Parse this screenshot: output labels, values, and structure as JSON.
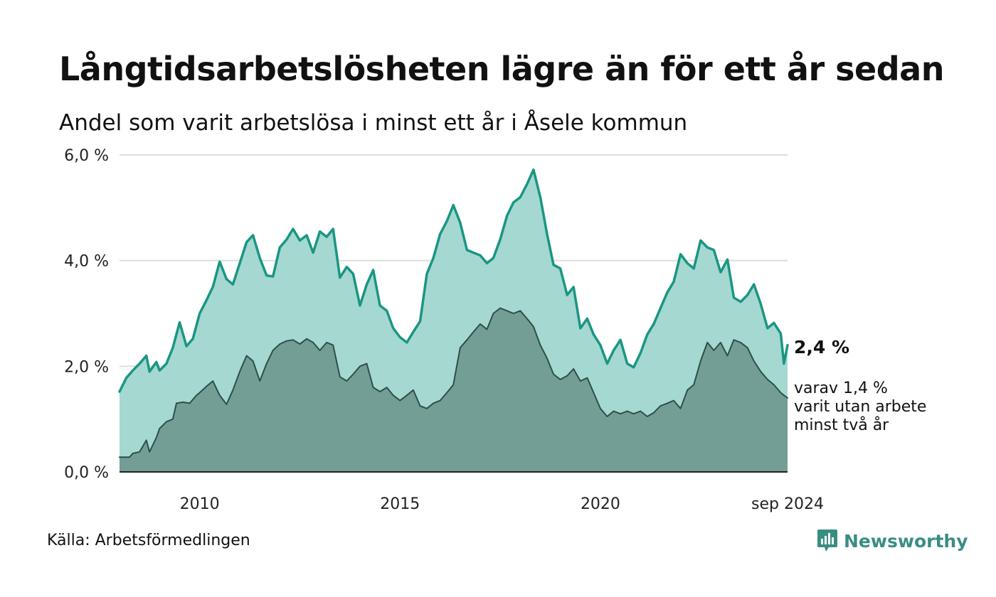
{
  "title": "Långtidsarbetslösheten lägre än för ett år sedan",
  "subtitle": "Andel som varit arbetslösa i minst ett år i Åsele kommun",
  "source": "Källa: Arbetsförmedlingen",
  "brand": {
    "name": "Newsworthy",
    "icon": "newsworthy-logo-icon",
    "color": "#3a8d84"
  },
  "colors": {
    "outer_fill": "#a5d8d1",
    "outer_line": "#1a9683",
    "inner_fill": "#729e96",
    "inner_line": "#2d4f49",
    "grid": "#dddddd",
    "axis": "#222222"
  },
  "chart_data": {
    "type": "area",
    "x_range": [
      2008.0,
      2024.67
    ],
    "ylim": [
      0,
      6
    ],
    "y_ticks": [
      0,
      2,
      4,
      6
    ],
    "y_tick_labels": [
      "0,0 %",
      "2,0 %",
      "4,0 %",
      "6,0 %"
    ],
    "x_ticks": [
      2010,
      2015,
      2020,
      2024.67
    ],
    "x_tick_labels": [
      "2010",
      "2015",
      "2020",
      "sep 2024"
    ],
    "grid": true,
    "annotations": {
      "value_label": "2,4 %",
      "note_lines": [
        "varav 1,4 %",
        "varit utan arbete",
        "minst två år"
      ]
    },
    "series": [
      {
        "points": [
          [
            2008.0,
            1.52
          ],
          [
            2008.17,
            1.78
          ],
          [
            2008.33,
            1.92
          ],
          [
            2008.5,
            2.05
          ],
          [
            2008.67,
            2.2
          ],
          [
            2008.75,
            1.9
          ],
          [
            2008.92,
            2.08
          ],
          [
            2009.0,
            1.92
          ],
          [
            2009.17,
            2.05
          ],
          [
            2009.33,
            2.35
          ],
          [
            2009.5,
            2.83
          ],
          [
            2009.67,
            2.38
          ],
          [
            2009.83,
            2.52
          ],
          [
            2010.0,
            3.0
          ],
          [
            2010.17,
            3.25
          ],
          [
            2010.33,
            3.5
          ],
          [
            2010.5,
            3.98
          ],
          [
            2010.67,
            3.65
          ],
          [
            2010.83,
            3.55
          ],
          [
            2011.0,
            3.95
          ],
          [
            2011.17,
            4.35
          ],
          [
            2011.33,
            4.48
          ],
          [
            2011.5,
            4.05
          ],
          [
            2011.67,
            3.72
          ],
          [
            2011.83,
            3.7
          ],
          [
            2012.0,
            4.25
          ],
          [
            2012.17,
            4.4
          ],
          [
            2012.33,
            4.6
          ],
          [
            2012.5,
            4.38
          ],
          [
            2012.67,
            4.48
          ],
          [
            2012.83,
            4.15
          ],
          [
            2013.0,
            4.55
          ],
          [
            2013.17,
            4.45
          ],
          [
            2013.33,
            4.6
          ],
          [
            2013.5,
            3.68
          ],
          [
            2013.67,
            3.88
          ],
          [
            2013.83,
            3.75
          ],
          [
            2014.0,
            3.15
          ],
          [
            2014.17,
            3.55
          ],
          [
            2014.33,
            3.82
          ],
          [
            2014.5,
            3.15
          ],
          [
            2014.67,
            3.05
          ],
          [
            2014.83,
            2.72
          ],
          [
            2015.0,
            2.55
          ],
          [
            2015.17,
            2.45
          ],
          [
            2015.33,
            2.65
          ],
          [
            2015.5,
            2.85
          ],
          [
            2015.67,
            3.75
          ],
          [
            2015.83,
            4.05
          ],
          [
            2016.0,
            4.5
          ],
          [
            2016.17,
            4.75
          ],
          [
            2016.33,
            5.05
          ],
          [
            2016.5,
            4.72
          ],
          [
            2016.67,
            4.2
          ],
          [
            2016.83,
            4.15
          ],
          [
            2017.0,
            4.1
          ],
          [
            2017.17,
            3.95
          ],
          [
            2017.33,
            4.05
          ],
          [
            2017.5,
            4.4
          ],
          [
            2017.67,
            4.85
          ],
          [
            2017.83,
            5.1
          ],
          [
            2018.0,
            5.2
          ],
          [
            2018.17,
            5.45
          ],
          [
            2018.33,
            5.72
          ],
          [
            2018.5,
            5.2
          ],
          [
            2018.67,
            4.5
          ],
          [
            2018.83,
            3.92
          ],
          [
            2019.0,
            3.85
          ],
          [
            2019.17,
            3.35
          ],
          [
            2019.33,
            3.5
          ],
          [
            2019.5,
            2.72
          ],
          [
            2019.67,
            2.9
          ],
          [
            2019.83,
            2.6
          ],
          [
            2020.0,
            2.4
          ],
          [
            2020.17,
            2.05
          ],
          [
            2020.33,
            2.3
          ],
          [
            2020.5,
            2.5
          ],
          [
            2020.67,
            2.05
          ],
          [
            2020.83,
            1.98
          ],
          [
            2021.0,
            2.25
          ],
          [
            2021.17,
            2.6
          ],
          [
            2021.33,
            2.8
          ],
          [
            2021.5,
            3.1
          ],
          [
            2021.67,
            3.4
          ],
          [
            2021.83,
            3.6
          ],
          [
            2022.0,
            4.12
          ],
          [
            2022.17,
            3.95
          ],
          [
            2022.33,
            3.85
          ],
          [
            2022.5,
            4.38
          ],
          [
            2022.67,
            4.25
          ],
          [
            2022.83,
            4.2
          ],
          [
            2023.0,
            3.78
          ],
          [
            2023.17,
            4.02
          ],
          [
            2023.33,
            3.3
          ],
          [
            2023.5,
            3.22
          ],
          [
            2023.67,
            3.35
          ],
          [
            2023.83,
            3.55
          ],
          [
            2024.0,
            3.18
          ],
          [
            2024.17,
            2.72
          ],
          [
            2024.33,
            2.82
          ],
          [
            2024.5,
            2.62
          ],
          [
            2024.58,
            2.05
          ],
          [
            2024.67,
            2.4
          ]
        ]
      },
      {
        "points": [
          [
            2008.0,
            0.28
          ],
          [
            2008.25,
            0.28
          ],
          [
            2008.33,
            0.35
          ],
          [
            2008.5,
            0.38
          ],
          [
            2008.67,
            0.6
          ],
          [
            2008.75,
            0.38
          ],
          [
            2008.92,
            0.65
          ],
          [
            2009.0,
            0.82
          ],
          [
            2009.17,
            0.95
          ],
          [
            2009.33,
            1.0
          ],
          [
            2009.42,
            1.3
          ],
          [
            2009.58,
            1.32
          ],
          [
            2009.75,
            1.3
          ],
          [
            2009.92,
            1.45
          ],
          [
            2010.0,
            1.5
          ],
          [
            2010.17,
            1.62
          ],
          [
            2010.33,
            1.72
          ],
          [
            2010.5,
            1.45
          ],
          [
            2010.67,
            1.28
          ],
          [
            2010.83,
            1.55
          ],
          [
            2011.0,
            1.9
          ],
          [
            2011.17,
            2.2
          ],
          [
            2011.33,
            2.1
          ],
          [
            2011.5,
            1.72
          ],
          [
            2011.67,
            2.05
          ],
          [
            2011.83,
            2.3
          ],
          [
            2012.0,
            2.42
          ],
          [
            2012.17,
            2.48
          ],
          [
            2012.33,
            2.5
          ],
          [
            2012.5,
            2.42
          ],
          [
            2012.67,
            2.52
          ],
          [
            2012.83,
            2.45
          ],
          [
            2013.0,
            2.3
          ],
          [
            2013.17,
            2.45
          ],
          [
            2013.33,
            2.4
          ],
          [
            2013.5,
            1.8
          ],
          [
            2013.67,
            1.72
          ],
          [
            2013.83,
            1.85
          ],
          [
            2014.0,
            2.0
          ],
          [
            2014.17,
            2.05
          ],
          [
            2014.33,
            1.6
          ],
          [
            2014.5,
            1.52
          ],
          [
            2014.67,
            1.6
          ],
          [
            2014.83,
            1.45
          ],
          [
            2015.0,
            1.35
          ],
          [
            2015.17,
            1.45
          ],
          [
            2015.33,
            1.55
          ],
          [
            2015.5,
            1.25
          ],
          [
            2015.67,
            1.2
          ],
          [
            2015.83,
            1.3
          ],
          [
            2016.0,
            1.35
          ],
          [
            2016.17,
            1.5
          ],
          [
            2016.33,
            1.65
          ],
          [
            2016.5,
            2.35
          ],
          [
            2016.67,
            2.5
          ],
          [
            2016.83,
            2.65
          ],
          [
            2017.0,
            2.8
          ],
          [
            2017.17,
            2.7
          ],
          [
            2017.33,
            3.0
          ],
          [
            2017.5,
            3.1
          ],
          [
            2017.67,
            3.05
          ],
          [
            2017.83,
            3.0
          ],
          [
            2018.0,
            3.05
          ],
          [
            2018.17,
            2.9
          ],
          [
            2018.33,
            2.75
          ],
          [
            2018.5,
            2.4
          ],
          [
            2018.67,
            2.15
          ],
          [
            2018.83,
            1.85
          ],
          [
            2019.0,
            1.75
          ],
          [
            2019.17,
            1.82
          ],
          [
            2019.33,
            1.95
          ],
          [
            2019.5,
            1.72
          ],
          [
            2019.67,
            1.78
          ],
          [
            2019.83,
            1.5
          ],
          [
            2020.0,
            1.2
          ],
          [
            2020.17,
            1.05
          ],
          [
            2020.33,
            1.15
          ],
          [
            2020.5,
            1.1
          ],
          [
            2020.67,
            1.15
          ],
          [
            2020.83,
            1.1
          ],
          [
            2021.0,
            1.15
          ],
          [
            2021.17,
            1.05
          ],
          [
            2021.33,
            1.12
          ],
          [
            2021.5,
            1.25
          ],
          [
            2021.67,
            1.3
          ],
          [
            2021.83,
            1.35
          ],
          [
            2022.0,
            1.2
          ],
          [
            2022.17,
            1.55
          ],
          [
            2022.33,
            1.65
          ],
          [
            2022.5,
            2.1
          ],
          [
            2022.67,
            2.45
          ],
          [
            2022.83,
            2.3
          ],
          [
            2023.0,
            2.45
          ],
          [
            2023.17,
            2.2
          ],
          [
            2023.33,
            2.5
          ],
          [
            2023.5,
            2.45
          ],
          [
            2023.67,
            2.35
          ],
          [
            2023.83,
            2.1
          ],
          [
            2024.0,
            1.9
          ],
          [
            2024.17,
            1.75
          ],
          [
            2024.33,
            1.65
          ],
          [
            2024.5,
            1.5
          ],
          [
            2024.58,
            1.45
          ],
          [
            2024.67,
            1.4
          ]
        ]
      }
    ]
  }
}
